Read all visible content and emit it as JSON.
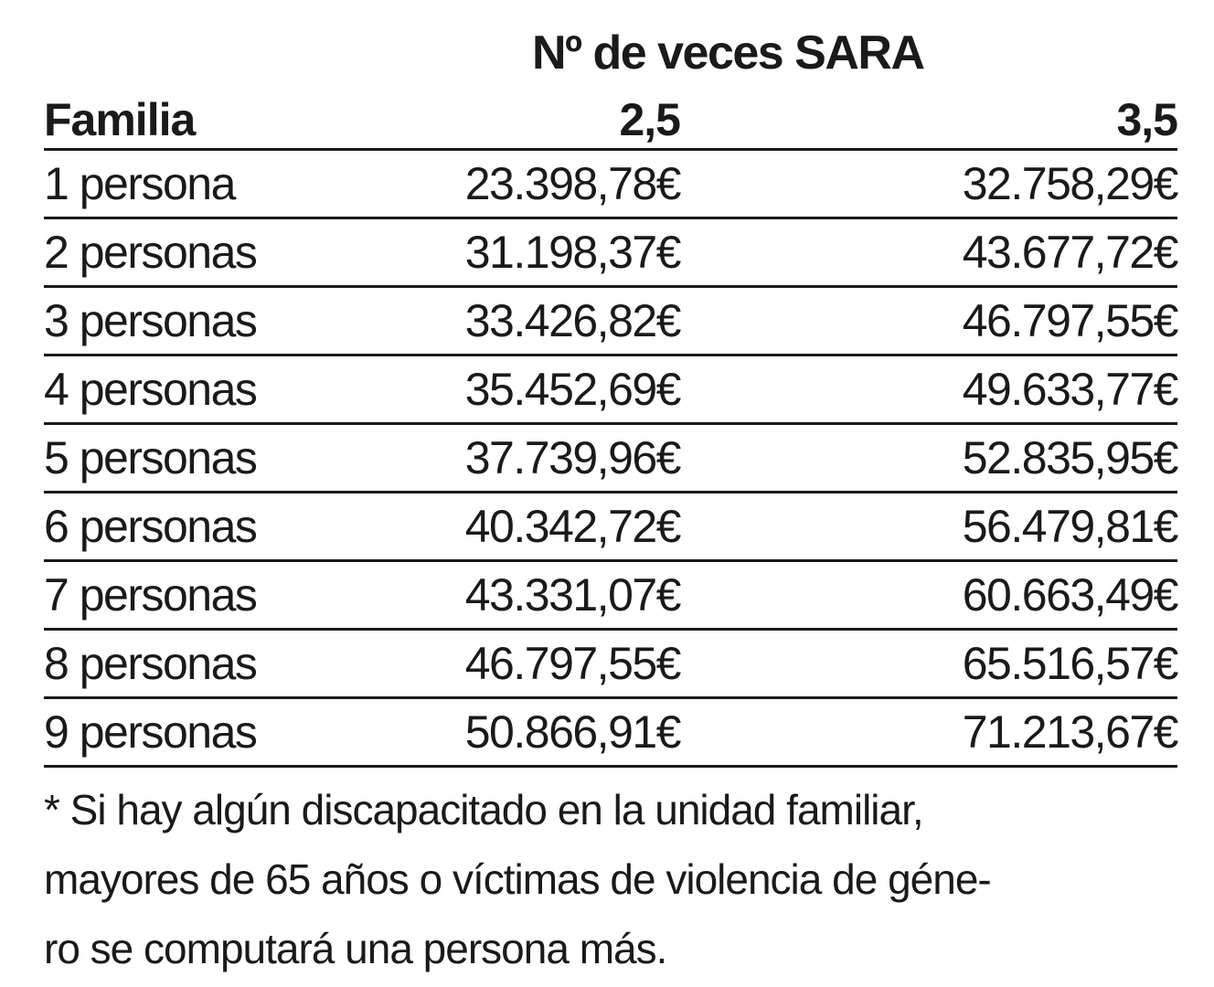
{
  "title": "Nº de veces SARA",
  "table": {
    "headers": [
      "Familia",
      "2,5",
      "3,5"
    ],
    "rows": [
      [
        "1 persona",
        "23.398,78€",
        "32.758,29€"
      ],
      [
        "2 personas",
        "31.198,37€",
        "43.677,72€"
      ],
      [
        "3 personas",
        "33.426,82€",
        "46.797,55€"
      ],
      [
        "4 personas",
        "35.452,69€",
        "49.633,77€"
      ],
      [
        "5 personas",
        "37.739,96€",
        "52.835,95€"
      ],
      [
        "6 personas",
        "40.342,72€",
        "56.479,81€"
      ],
      [
        "7 personas",
        "43.331,07€",
        "60.663,49€"
      ],
      [
        "8 personas",
        "46.797,55€",
        "65.516,57€"
      ],
      [
        "9 personas",
        "50.866,91€",
        "71.213,67€"
      ]
    ]
  },
  "footnote": {
    "lines": [
      "* Si hay algún discapacitado en la unidad familiar,",
      "mayores de 65 años o víctimas de violencia de géne-",
      "ro se computará una persona más."
    ]
  }
}
